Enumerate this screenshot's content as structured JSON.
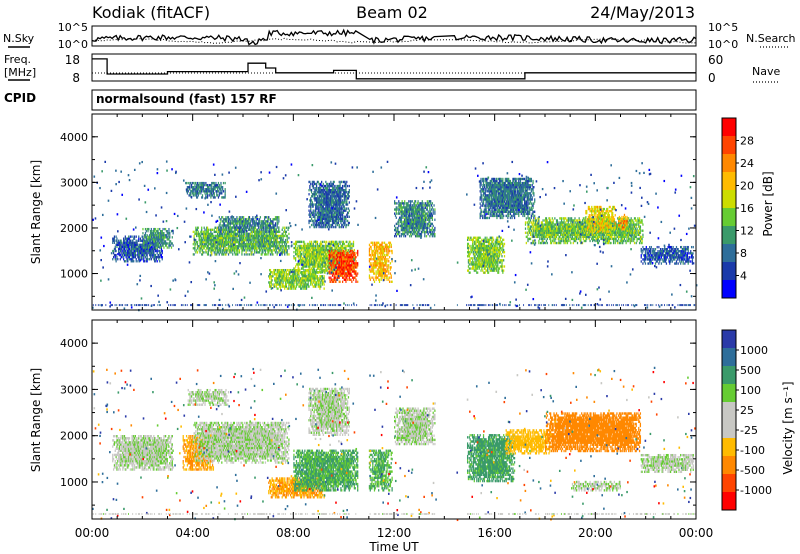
{
  "header": {
    "station": "Kodiak (fitACF)",
    "beam": "Beam 02",
    "date": "24/May/2013"
  },
  "noise_panel": {
    "left_label": "N.Sky",
    "right_label": "N.Search",
    "left_ticks": [
      "10^5",
      "10^0"
    ],
    "right_ticks": [
      "10^5",
      "10^0"
    ]
  },
  "freq_panel": {
    "left_label_line1": "Freq.",
    "left_label_line2": "[MHz]",
    "right_label": "Nave",
    "left_ticks": [
      "18",
      "8"
    ],
    "right_ticks": [
      "60",
      "0"
    ]
  },
  "cpid": {
    "label": "CPID",
    "program": "normalsound (fast) 157 RF"
  },
  "power_colorbar": {
    "title": "Power [dB]",
    "ticks": [
      "28",
      "24",
      "20",
      "16",
      "12",
      "8",
      "4"
    ],
    "colors": [
      "#ff0000",
      "#ff4400",
      "#ff8800",
      "#ffbb00",
      "#ccdd00",
      "#66cc33",
      "#3a9a6a",
      "#2e6e9a",
      "#1a3aaa",
      "#0000ff"
    ]
  },
  "velocity_colorbar": {
    "title": "Velocity [m s⁻¹]",
    "ticks": [
      "1000",
      "500",
      "100",
      "25",
      "-25",
      "-100",
      "-500",
      "-1000"
    ],
    "colors": [
      "#2a3aa8",
      "#2e6e9a",
      "#3a9a6a",
      "#66cc33",
      "#c8c8c4",
      "#c8c8c4",
      "#ffbb00",
      "#ff8800",
      "#ff4400",
      "#ff0000"
    ]
  },
  "y_axis": {
    "label": "Slant Range [km]",
    "ticks": [
      "4000",
      "3000",
      "2000",
      "1000"
    ]
  },
  "x_axis": {
    "label": "Time UT",
    "ticks": [
      "00:00",
      "04:00",
      "08:00",
      "12:00",
      "16:00",
      "20:00",
      "00:00"
    ]
  },
  "chart_data": [
    {
      "type": "heatmap",
      "panel": "power",
      "x_range_hours": [
        0,
        24
      ],
      "y_range_km": [
        200,
        4500
      ],
      "color_range_db": [
        0,
        30
      ],
      "features": [
        {
          "t0": 0.8,
          "t1": 2.8,
          "r0": 1250,
          "r1": 1800,
          "power": 6
        },
        {
          "t0": 2.0,
          "t1": 3.2,
          "r0": 1550,
          "r1": 2000,
          "power": 10
        },
        {
          "t0": 3.7,
          "t1": 5.3,
          "r0": 2650,
          "r1": 3000,
          "power": 8
        },
        {
          "t0": 4.0,
          "t1": 7.8,
          "r0": 1400,
          "r1": 2000,
          "power": 12
        },
        {
          "t0": 5.0,
          "t1": 7.4,
          "r0": 1900,
          "r1": 2250,
          "power": 9
        },
        {
          "t0": 7.0,
          "t1": 9.2,
          "r0": 650,
          "r1": 1100,
          "power": 14
        },
        {
          "t0": 8.0,
          "t1": 10.4,
          "r0": 1000,
          "r1": 1700,
          "power": 14
        },
        {
          "t0": 8.6,
          "t1": 10.2,
          "r0": 2000,
          "r1": 3000,
          "power": 7
        },
        {
          "t0": 9.4,
          "t1": 10.6,
          "r0": 800,
          "r1": 1500,
          "power": 26
        },
        {
          "t0": 11.0,
          "t1": 11.9,
          "r0": 800,
          "r1": 1700,
          "power": 20
        },
        {
          "t0": 12.0,
          "t1": 13.6,
          "r0": 1800,
          "r1": 2600,
          "power": 9
        },
        {
          "t0": 14.9,
          "t1": 16.4,
          "r0": 1000,
          "r1": 1800,
          "power": 14
        },
        {
          "t0": 15.4,
          "t1": 17.6,
          "r0": 2200,
          "r1": 3100,
          "power": 8
        },
        {
          "t0": 17.2,
          "t1": 21.9,
          "r0": 1650,
          "r1": 2200,
          "power": 13
        },
        {
          "t0": 19.6,
          "t1": 20.8,
          "r0": 1900,
          "r1": 2450,
          "power": 18
        },
        {
          "t0": 20.9,
          "t1": 21.3,
          "r0": 1950,
          "r1": 2300,
          "power": 22
        },
        {
          "t0": 21.8,
          "t1": 23.9,
          "r0": 1200,
          "r1": 1600,
          "power": 6
        }
      ]
    },
    {
      "type": "heatmap",
      "panel": "velocity",
      "x_range_hours": [
        0,
        24
      ],
      "y_range_km": [
        200,
        4500
      ],
      "color_range_ms": [
        -1000,
        1000
      ],
      "features": [
        {
          "t0": 0.8,
          "t1": 3.2,
          "r0": 1250,
          "r1": 2000,
          "velocity": 0
        },
        {
          "t0": 3.6,
          "t1": 4.8,
          "r0": 1250,
          "r1": 2000,
          "velocity": -300
        },
        {
          "t0": 4.0,
          "t1": 7.8,
          "r0": 1400,
          "r1": 2300,
          "velocity": 0
        },
        {
          "t0": 3.8,
          "t1": 5.4,
          "r0": 2650,
          "r1": 3000,
          "velocity": 0
        },
        {
          "t0": 7.0,
          "t1": 9.2,
          "r0": 650,
          "r1": 1100,
          "velocity": -300
        },
        {
          "t0": 8.0,
          "t1": 10.6,
          "r0": 800,
          "r1": 1700,
          "velocity": 120
        },
        {
          "t0": 8.6,
          "t1": 10.2,
          "r0": 2000,
          "r1": 3000,
          "velocity": 0
        },
        {
          "t0": 11.0,
          "t1": 11.9,
          "r0": 800,
          "r1": 1700,
          "velocity": 100
        },
        {
          "t0": 12.0,
          "t1": 13.6,
          "r0": 1800,
          "r1": 2600,
          "velocity": 0
        },
        {
          "t0": 14.9,
          "t1": 16.8,
          "r0": 1000,
          "r1": 2000,
          "velocity": 150
        },
        {
          "t0": 16.4,
          "t1": 18.2,
          "r0": 1600,
          "r1": 2100,
          "velocity": -200
        },
        {
          "t0": 18.0,
          "t1": 21.8,
          "r0": 1650,
          "r1": 2500,
          "velocity": -400
        },
        {
          "t0": 21.8,
          "t1": 23.9,
          "r0": 1200,
          "r1": 1600,
          "velocity": 0
        },
        {
          "t0": 19.0,
          "t1": 21.0,
          "r0": 800,
          "r1": 1000,
          "velocity": 0
        }
      ]
    }
  ]
}
